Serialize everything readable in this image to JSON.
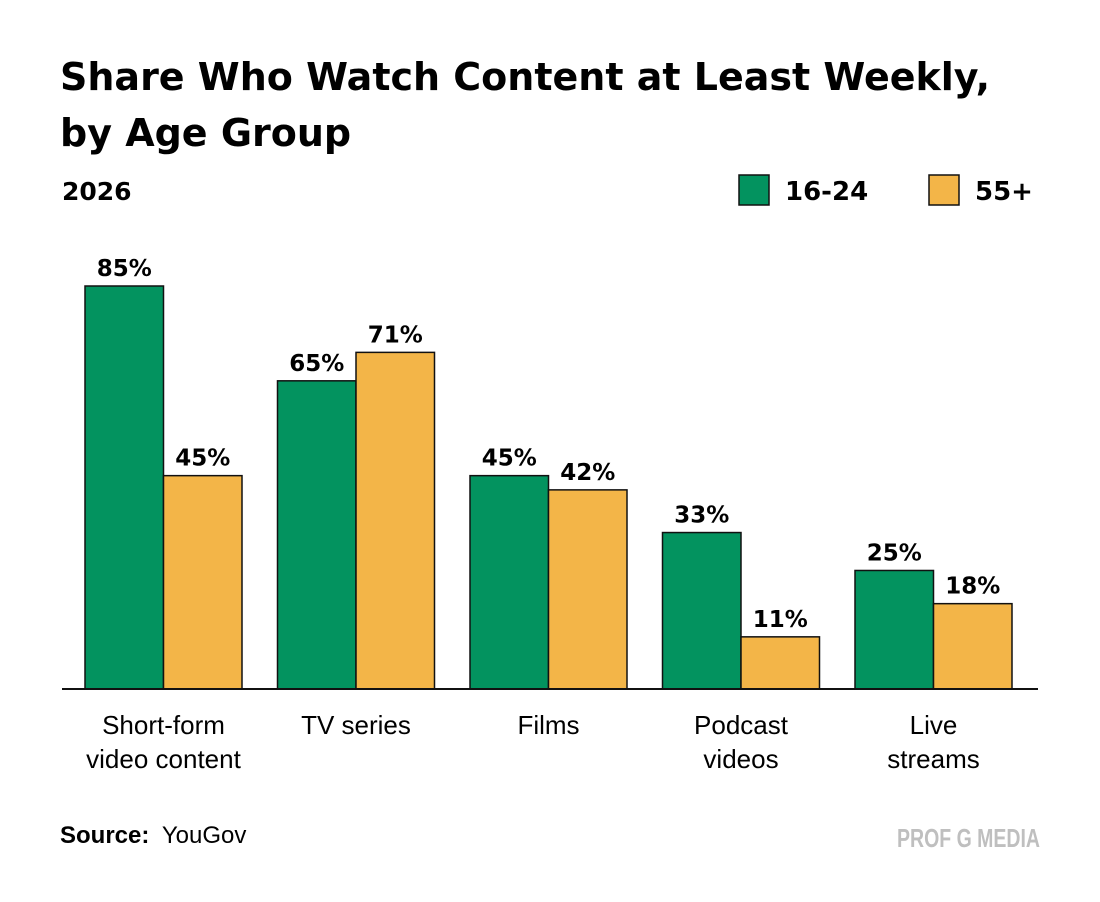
{
  "title_lines": [
    "Share Who Watch Content at Least Weekly,",
    "by Age Group"
  ],
  "subtitle": "2026",
  "source_label": "Source:",
  "source_text": "YouGov",
  "brand": "PROF G MEDIA",
  "colors": {
    "series_1": "#03935F",
    "series_2": "#F3B548",
    "brand": "#BFBFBF",
    "outline": "#111111"
  },
  "chart_data": {
    "type": "bar",
    "categories": [
      [
        "Short-form",
        "video content"
      ],
      [
        "TV series"
      ],
      [
        "Films"
      ],
      [
        "Podcast",
        "videos"
      ],
      [
        "Live",
        "streams"
      ]
    ],
    "series": [
      {
        "name": "16-24",
        "values": [
          85,
          65,
          45,
          33,
          25
        ],
        "labels": [
          "85%",
          "65%",
          "45%",
          "33%",
          "25%"
        ]
      },
      {
        "name": "55+",
        "values": [
          45,
          71,
          42,
          11,
          18
        ],
        "labels": [
          "45%",
          "71%",
          "42%",
          "11%",
          "18%"
        ]
      }
    ],
    "ylim": [
      0,
      85
    ],
    "unit": "%",
    "grid": false,
    "legend_position": "top-right",
    "xlabel": "",
    "ylabel": ""
  }
}
